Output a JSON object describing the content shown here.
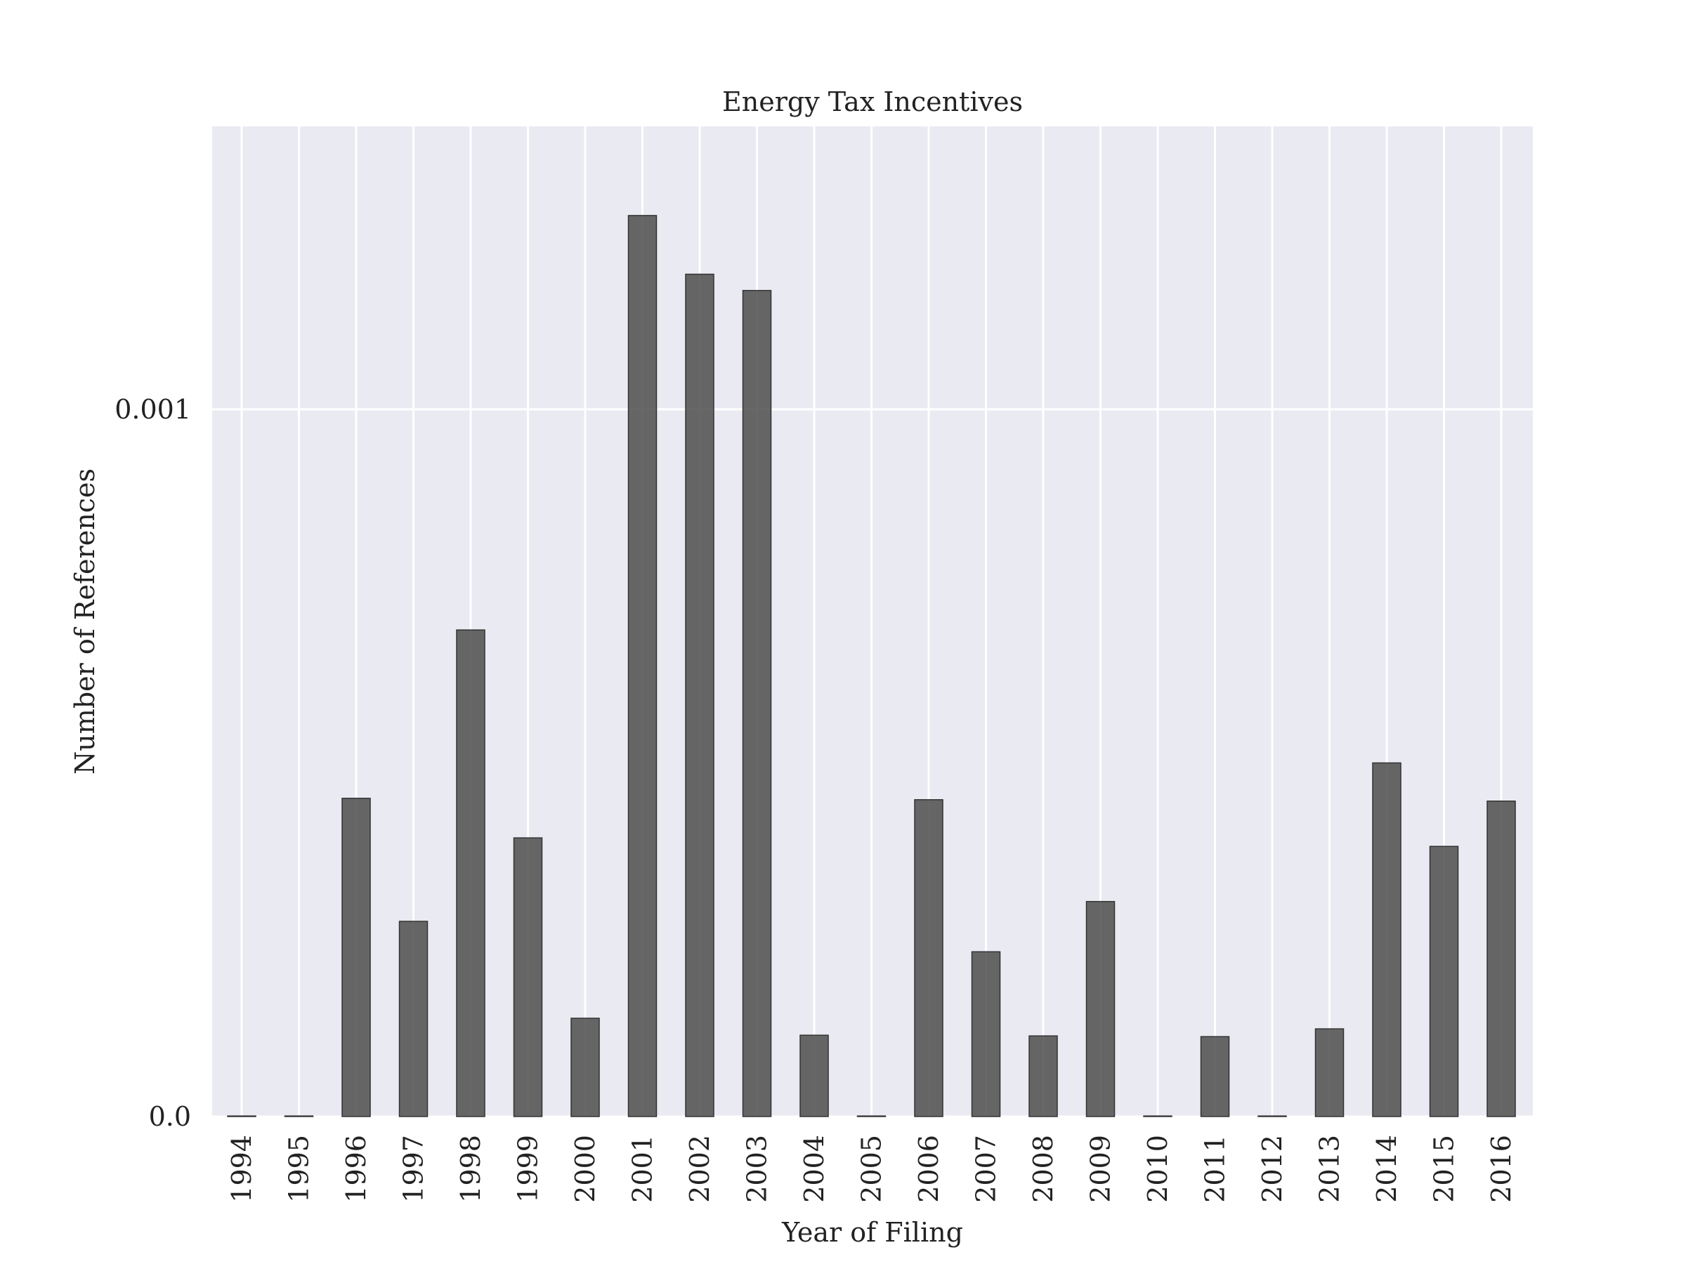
{
  "chart_data": {
    "type": "bar",
    "title": "Energy Tax Incentives",
    "xlabel": "Year of Filing",
    "ylabel": "Number of References",
    "categories": [
      "1994",
      "1995",
      "1996",
      "1997",
      "1998",
      "1999",
      "2000",
      "2001",
      "2002",
      "2003",
      "2004",
      "2005",
      "2006",
      "2007",
      "2008",
      "2009",
      "2010",
      "2011",
      "2012",
      "2013",
      "2014",
      "2015",
      "2016"
    ],
    "values": [
      0.0,
      0.0,
      0.00045,
      0.000276,
      0.000688,
      0.000394,
      0.000139,
      0.001274,
      0.001191,
      0.001168,
      0.000115,
      0.0,
      0.000448,
      0.000233,
      0.000114,
      0.000304,
      0.0,
      0.000113,
      0.0,
      0.000124,
      0.0005,
      0.000382,
      0.000446
    ],
    "ylim": [
      0,
      0.0014
    ],
    "yticks": [
      0.0,
      0.001
    ],
    "ytick_labels": [
      "0.0",
      "0.001"
    ],
    "grid": true,
    "colors": {
      "bar": "#4d4d4d",
      "plot_background": "#eaeaf2",
      "grid": "#ffffff"
    }
  }
}
